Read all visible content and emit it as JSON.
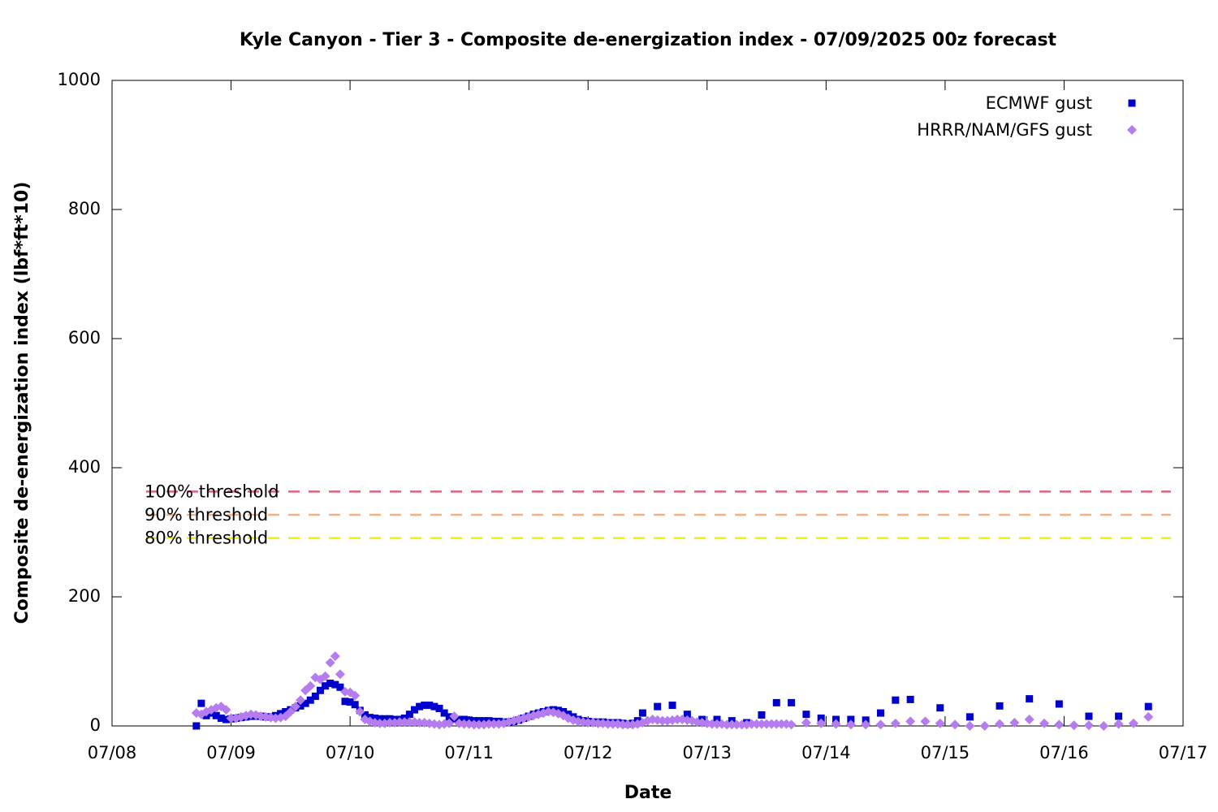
{
  "chart_data": {
    "type": "scatter",
    "title": "Kyle Canyon - Tier 3 - Composite de-energization index - 07/09/2025 00z forecast",
    "xlabel": "Date",
    "ylabel": "Composite de-energization index (lbf*ft*10)",
    "xlim": [
      0,
      216
    ],
    "xticks": [
      {
        "value": 0,
        "label": "07/08"
      },
      {
        "value": 24,
        "label": "07/09"
      },
      {
        "value": 48,
        "label": "07/10"
      },
      {
        "value": 72,
        "label": "07/11"
      },
      {
        "value": 96,
        "label": "07/12"
      },
      {
        "value": 120,
        "label": "07/13"
      },
      {
        "value": 144,
        "label": "07/14"
      },
      {
        "value": 168,
        "label": "07/15"
      },
      {
        "value": 192,
        "label": "07/16"
      },
      {
        "value": 216,
        "label": "07/17"
      }
    ],
    "ylim": [
      0,
      1000
    ],
    "yticks": [
      0,
      200,
      400,
      600,
      800,
      1000
    ],
    "legend": "top-right",
    "thresholds": [
      {
        "label": "100% threshold",
        "value": 363,
        "color": "#e0607e"
      },
      {
        "label": "90% threshold",
        "value": 327,
        "color": "#f4b183"
      },
      {
        "label": "80% threshold",
        "value": 291,
        "color": "#f0f000"
      }
    ],
    "series": [
      {
        "name": "ECMWF gust",
        "color": "#0000cd",
        "marker": "square",
        "x": [
          17,
          18,
          19,
          20,
          21,
          22,
          23,
          24,
          25,
          26,
          27,
          28,
          29,
          30,
          31,
          32,
          33,
          34,
          35,
          36,
          37,
          38,
          39,
          40,
          41,
          42,
          43,
          44,
          45,
          46,
          47,
          48,
          49,
          50,
          51,
          52,
          53,
          54,
          55,
          56,
          57,
          58,
          59,
          60,
          61,
          62,
          63,
          64,
          65,
          66,
          67,
          68,
          69,
          70,
          71,
          72,
          73,
          74,
          75,
          76,
          77,
          78,
          79,
          80,
          81,
          82,
          83,
          84,
          85,
          86,
          87,
          88,
          89,
          90,
          91,
          92,
          93,
          94,
          95,
          96,
          97,
          98,
          99,
          100,
          101,
          102,
          103,
          104,
          105,
          106,
          107,
          110,
          113,
          116,
          119,
          122,
          125,
          128,
          131,
          134,
          137,
          140,
          143,
          146,
          149,
          152,
          155,
          158,
          161,
          167,
          173,
          179,
          185,
          191,
          197,
          203,
          209
        ],
        "values": [
          0,
          35,
          16,
          20,
          16,
          12,
          10,
          11,
          12,
          13,
          14,
          15,
          15,
          15,
          14,
          14,
          16,
          19,
          22,
          25,
          28,
          31,
          35,
          40,
          46,
          55,
          62,
          66,
          64,
          60,
          38,
          37,
          33,
          24,
          17,
          13,
          12,
          11,
          11,
          11,
          10,
          10,
          12,
          18,
          25,
          30,
          32,
          32,
          30,
          27,
          20,
          14,
          11,
          10,
          10,
          9,
          8,
          8,
          8,
          8,
          7,
          7,
          6,
          6,
          7,
          9,
          12,
          15,
          18,
          20,
          22,
          24,
          25,
          24,
          22,
          18,
          14,
          10,
          8,
          7,
          6,
          6,
          6,
          5,
          5,
          5,
          4,
          3,
          4,
          8,
          20,
          30,
          32,
          18,
          10,
          10,
          8,
          5,
          17,
          36,
          36,
          18,
          12,
          10,
          10,
          9,
          20,
          40,
          41,
          28,
          14,
          31,
          42,
          34,
          15,
          15,
          30
        ]
      },
      {
        "name": "HRRR/NAM/GFS gust",
        "color": "#b57cf0",
        "marker": "diamond",
        "x": [
          17,
          18,
          19,
          20,
          21,
          22,
          23,
          24,
          25,
          26,
          27,
          28,
          29,
          30,
          31,
          32,
          33,
          34,
          35,
          36,
          37,
          38,
          39,
          40,
          41,
          42,
          43,
          44,
          45,
          46,
          47,
          48,
          49,
          50,
          51,
          52,
          53,
          54,
          55,
          56,
          57,
          58,
          59,
          60,
          61,
          62,
          63,
          64,
          65,
          66,
          67,
          68,
          69,
          70,
          71,
          72,
          73,
          74,
          75,
          76,
          77,
          78,
          79,
          80,
          81,
          82,
          83,
          84,
          85,
          86,
          87,
          88,
          89,
          90,
          91,
          92,
          93,
          94,
          95,
          96,
          97,
          98,
          99,
          100,
          101,
          102,
          103,
          104,
          105,
          106,
          107,
          108,
          109,
          110,
          111,
          112,
          113,
          114,
          115,
          116,
          117,
          118,
          119,
          120,
          121,
          122,
          123,
          124,
          125,
          126,
          127,
          128,
          129,
          130,
          131,
          132,
          133,
          134,
          135,
          136,
          137,
          140,
          143,
          146,
          149,
          152,
          155,
          158,
          161,
          164,
          167,
          170,
          173,
          176,
          179,
          182,
          185,
          188,
          191,
          194,
          197,
          200,
          203,
          206,
          209
        ],
        "values": [
          20,
          18,
          22,
          25,
          28,
          30,
          25,
          12,
          12,
          14,
          16,
          18,
          17,
          15,
          14,
          13,
          12,
          13,
          15,
          22,
          30,
          40,
          55,
          62,
          75,
          72,
          77,
          98,
          108,
          80,
          53,
          52,
          47,
          22,
          10,
          7,
          5,
          4,
          4,
          5,
          5,
          6,
          6,
          6,
          6,
          5,
          5,
          4,
          3,
          2,
          3,
          4,
          15,
          4,
          3,
          3,
          2,
          2,
          2,
          3,
          3,
          3,
          4,
          6,
          8,
          10,
          12,
          14,
          16,
          18,
          20,
          22,
          21,
          19,
          16,
          12,
          9,
          7,
          6,
          5,
          5,
          4,
          4,
          3,
          3,
          3,
          2,
          2,
          2,
          3,
          5,
          8,
          10,
          9,
          8,
          8,
          9,
          10,
          10,
          9,
          8,
          6,
          5,
          4,
          3,
          3,
          3,
          2,
          2,
          2,
          2,
          2,
          3,
          3,
          3,
          3,
          3,
          3,
          3,
          3,
          2,
          5,
          4,
          3,
          2,
          2,
          2,
          4,
          7,
          7,
          4,
          2,
          0,
          0,
          3,
          5,
          10,
          4,
          2,
          1,
          1,
          0,
          3,
          4,
          14
        ]
      }
    ]
  }
}
